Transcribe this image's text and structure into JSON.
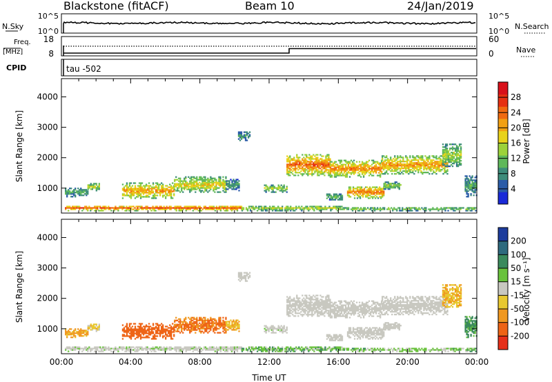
{
  "header": {
    "station": "Blackstone (fitACF)",
    "beam": "Beam 10",
    "date": "24/Jan/2019"
  },
  "noise_panel": {
    "left_label": "N.Sky",
    "right_label": "N.Search",
    "left_ticks": [
      "10^5",
      "10^0"
    ],
    "right_ticks": [
      "10^5",
      "10^0"
    ]
  },
  "freq_panel": {
    "left_label_1": "Freq.",
    "left_label_2": "[MHz]",
    "right_label": "Nave",
    "left_ticks": [
      "18",
      "8"
    ],
    "right_ticks": [
      "60",
      "0"
    ]
  },
  "cpid": {
    "label": "CPID",
    "value": "tau  -502"
  },
  "colors": {
    "power_scale": [
      "#1a2ad8",
      "#2b5ca8",
      "#3d8c7a",
      "#5fb85a",
      "#9cd23a",
      "#e8d21a",
      "#f2a012",
      "#f06a10",
      "#e63012",
      "#d8101a"
    ],
    "velocity_scale": [
      "#1d3c9c",
      "#2e6a7e",
      "#3a8a5c",
      "#69c23c",
      "#c8c8c0",
      "#e8c830",
      "#f09820",
      "#ee6416",
      "#e6301a"
    ]
  },
  "chart_data": [
    {
      "type": "heatmap",
      "title": "Power",
      "ylabel": "Slant Range [km]",
      "ylim": [
        180,
        4600
      ],
      "yticks": [
        "1000",
        "2000",
        "3000",
        "4000"
      ],
      "colorbar_label": "Power [dB]",
      "colorbar_ticks": [
        "4",
        "8",
        "12",
        "16",
        "20",
        "24",
        "28"
      ],
      "colorbar_range": [
        0,
        32
      ],
      "grid": false
    },
    {
      "type": "heatmap",
      "title": "Velocity",
      "ylabel": "Slant Range [km]",
      "xlabel": "Time UT",
      "ylim": [
        180,
        4600
      ],
      "yticks": [
        "1000",
        "2000",
        "3000",
        "4000"
      ],
      "xticks": [
        "00:00",
        "04:00",
        "08:00",
        "12:00",
        "16:00",
        "20:00",
        "00:00"
      ],
      "xlim_hours": [
        0,
        24
      ],
      "colorbar_label": "Velocity [m s⁻¹]",
      "colorbar_ticks": [
        "-200",
        "-100",
        "-50",
        "-15",
        "15",
        "50",
        "100",
        "200"
      ],
      "grid": false
    }
  ],
  "echo_regions": [
    {
      "t0": 0.2,
      "t1": 10.4,
      "r0": 240,
      "r1": 420,
      "power": 22,
      "velocity": 5
    },
    {
      "t0": 0.2,
      "t1": 1.5,
      "r0": 700,
      "r1": 1000,
      "power": 9,
      "velocity": -40
    },
    {
      "t0": 1.5,
      "t1": 2.2,
      "r0": 900,
      "r1": 1150,
      "power": 14,
      "velocity": -20
    },
    {
      "t0": 3.5,
      "t1": 6.5,
      "r0": 650,
      "r1": 1150,
      "power": 19,
      "velocity": -90
    },
    {
      "t0": 6.5,
      "t1": 9.5,
      "r0": 850,
      "r1": 1350,
      "power": 16,
      "velocity": -80
    },
    {
      "t0": 9.5,
      "t1": 10.3,
      "r0": 900,
      "r1": 1300,
      "power": 8,
      "velocity": -30
    },
    {
      "t0": 10.2,
      "t1": 10.9,
      "r0": 2550,
      "r1": 2850,
      "power": 8,
      "velocity": 0
    },
    {
      "t0": 11.7,
      "t1": 13.0,
      "r0": 850,
      "r1": 1100,
      "power": 13,
      "velocity": 5
    },
    {
      "t0": 10.4,
      "t1": 16.3,
      "r0": 240,
      "r1": 400,
      "power": 14,
      "velocity": 25
    },
    {
      "t0": 16.3,
      "t1": 23.9,
      "r0": 240,
      "r1": 360,
      "power": 12,
      "velocity": 20
    },
    {
      "t0": 13.0,
      "t1": 15.5,
      "r0": 1400,
      "r1": 2100,
      "power": 22,
      "velocity": 0
    },
    {
      "t0": 15.5,
      "t1": 18.5,
      "r0": 1350,
      "r1": 1900,
      "power": 20,
      "velocity": 0
    },
    {
      "t0": 18.5,
      "t1": 22.3,
      "r0": 1450,
      "r1": 2050,
      "power": 19,
      "velocity": 0
    },
    {
      "t0": 16.5,
      "t1": 18.6,
      "r0": 650,
      "r1": 1050,
      "power": 21,
      "velocity": 0
    },
    {
      "t0": 18.6,
      "t1": 19.6,
      "r0": 950,
      "r1": 1200,
      "power": 12,
      "velocity": 0
    },
    {
      "t0": 22.0,
      "t1": 23.1,
      "r0": 1700,
      "r1": 2450,
      "power": 13,
      "velocity": -30
    },
    {
      "t0": 23.3,
      "t1": 24.0,
      "r0": 700,
      "r1": 1400,
      "power": 9,
      "velocity": 40
    },
    {
      "t0": 15.3,
      "t1": 16.2,
      "r0": 600,
      "r1": 800,
      "power": 10,
      "velocity": 0
    }
  ]
}
